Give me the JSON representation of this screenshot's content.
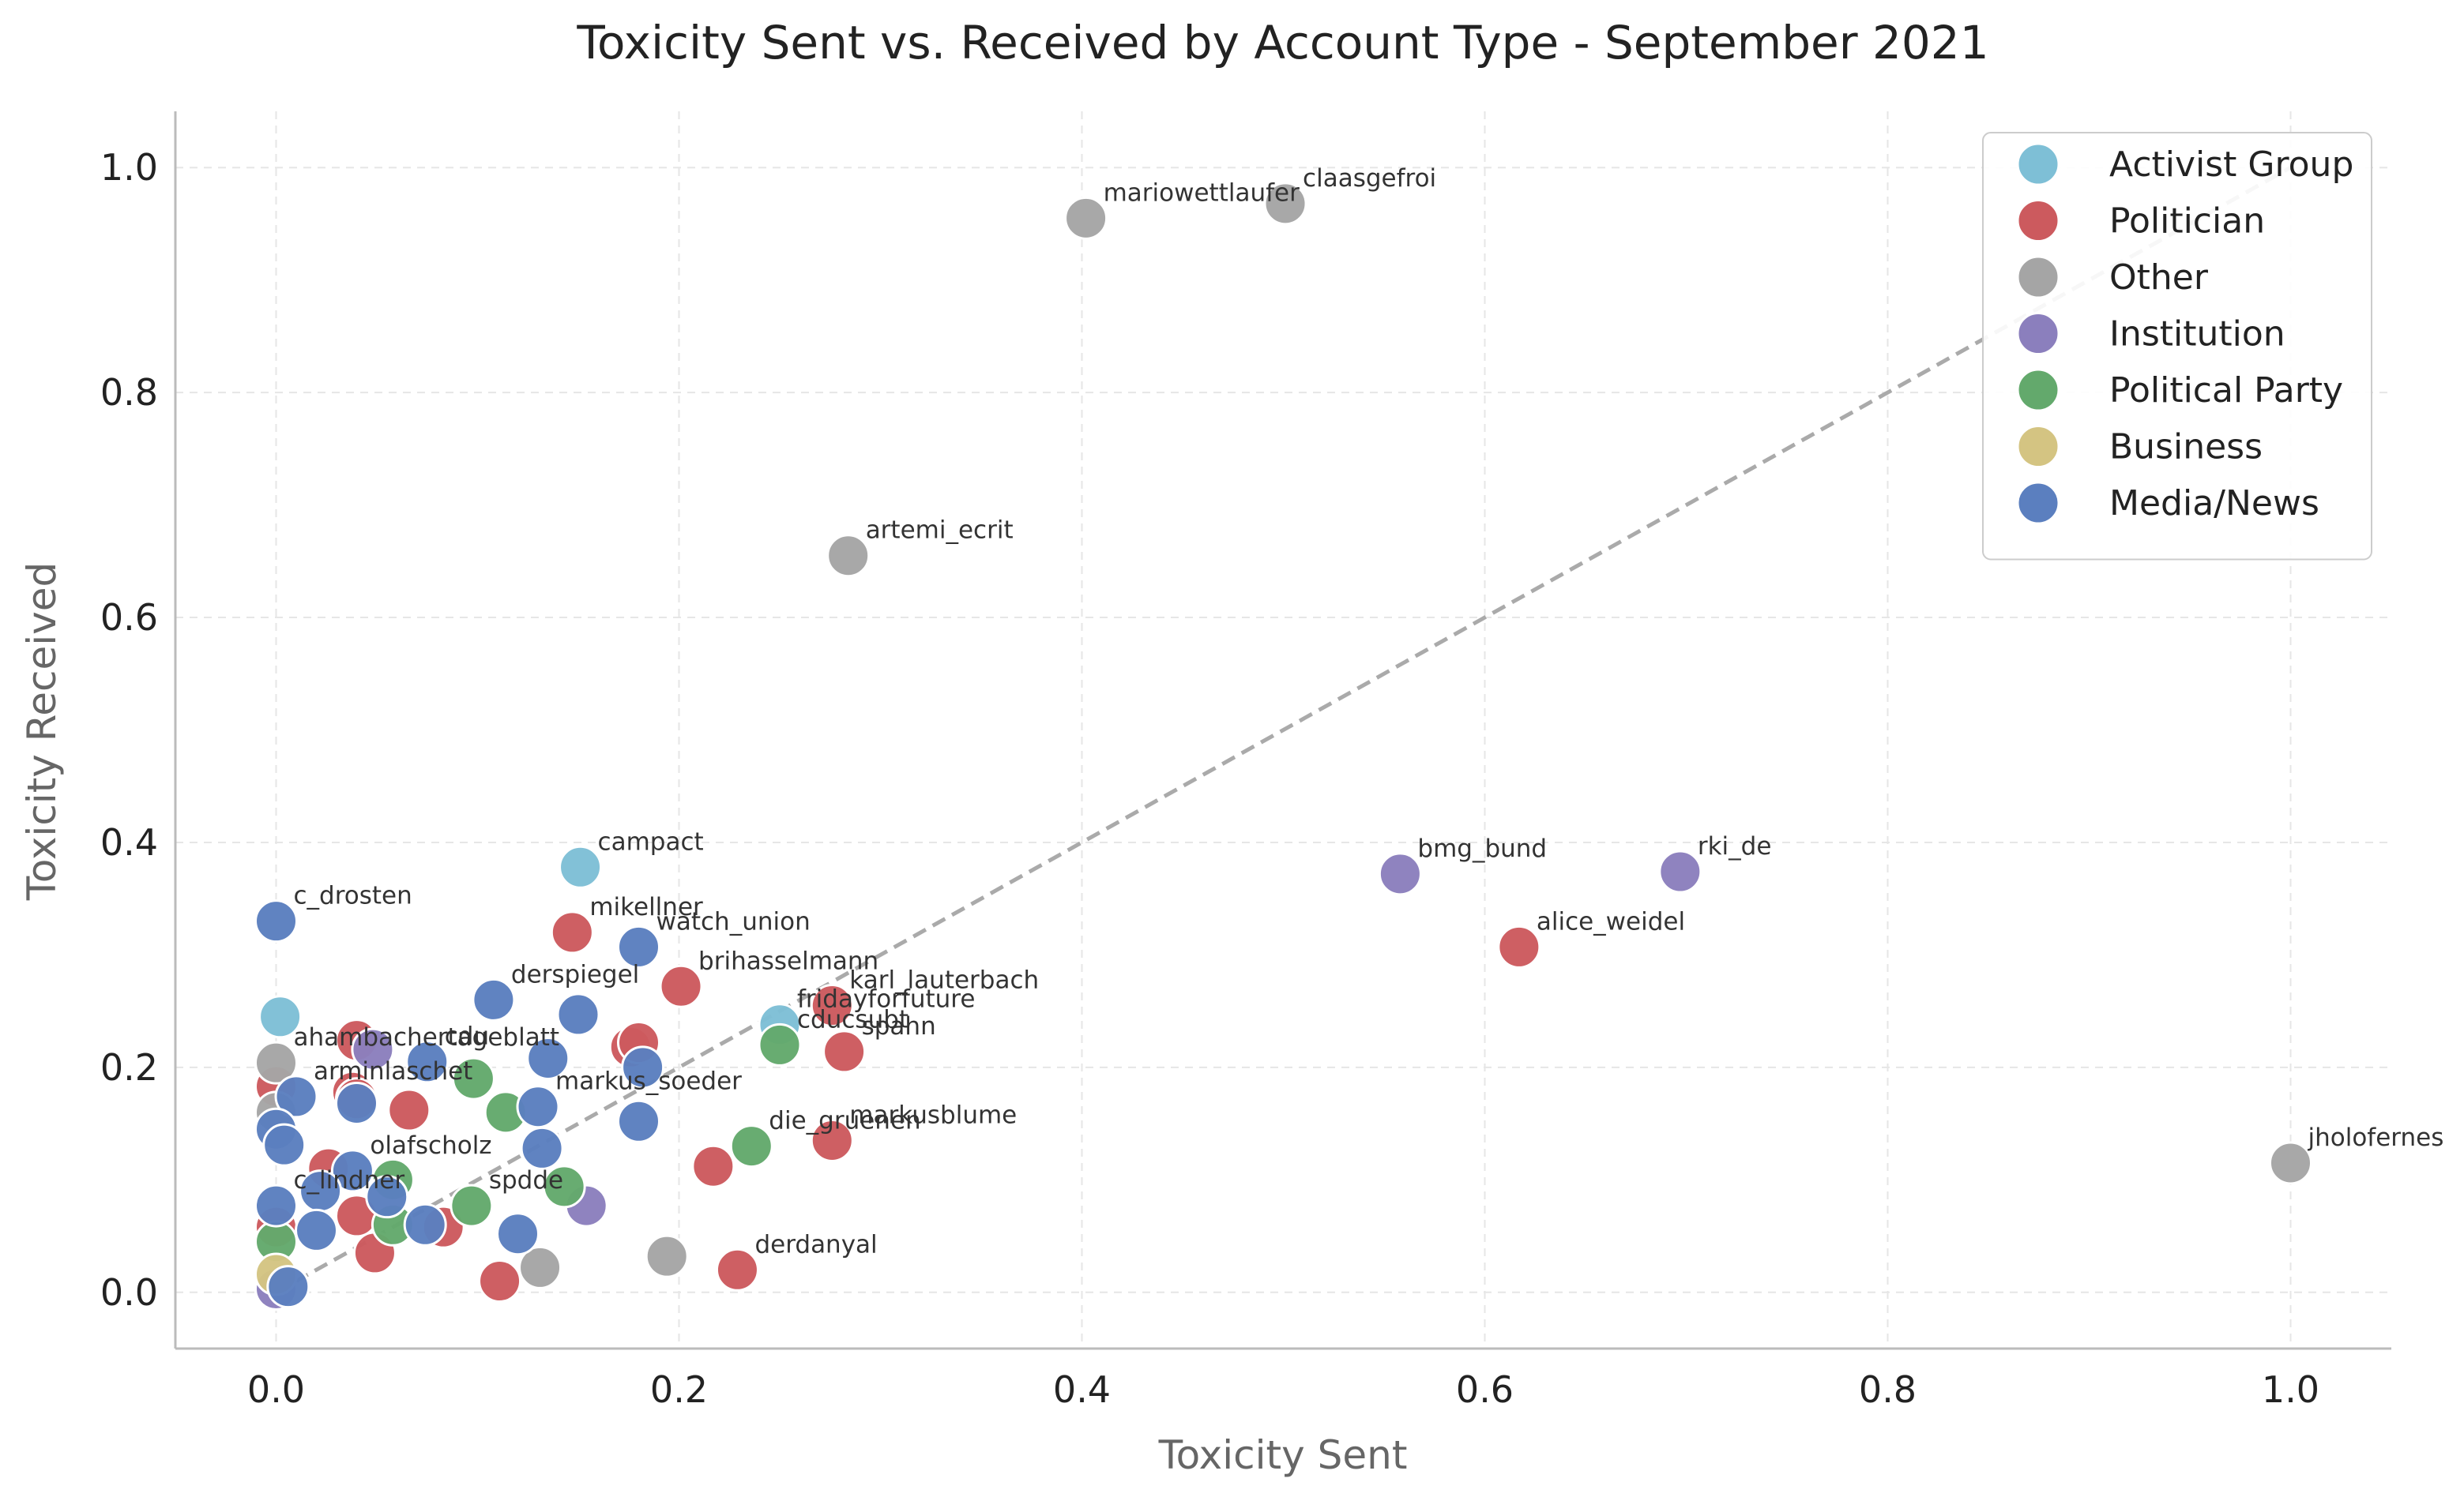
{
  "chart_data": {
    "type": "scatter",
    "title": "Toxicity Sent vs. Received by Account Type - September 2021",
    "xlabel": "Toxicity Sent",
    "ylabel": "Toxicity Received",
    "xlim": [
      -0.05,
      1.05
    ],
    "ylim": [
      -0.05,
      1.05
    ],
    "xticks": [
      "0.0",
      "0.2",
      "0.4",
      "0.6",
      "0.8",
      "1.0"
    ],
    "yticks": [
      "0.0",
      "0.2",
      "0.4",
      "0.6",
      "0.8",
      "1.0"
    ],
    "xtick_values": [
      0,
      0.2,
      0.4,
      0.6,
      0.8,
      1.0
    ],
    "ytick_values": [
      0,
      0.2,
      0.4,
      0.6,
      0.8,
      1.0
    ],
    "grid": true,
    "legend_position": "top-right",
    "reference_line": {
      "from": [
        0,
        0
      ],
      "to": [
        1,
        1
      ],
      "style": "dashed",
      "color": "#aaaaaa"
    },
    "series": [
      {
        "name": "Activist Group",
        "color": "#7ebfd6",
        "points": [
          {
            "x": 0.151,
            "y": 0.378,
            "label": "campact"
          },
          {
            "x": 0.002,
            "y": 0.245,
            "label": ""
          },
          {
            "x": 0.25,
            "y": 0.238,
            "label": "fridayforfuture"
          }
        ]
      },
      {
        "name": "Politician",
        "color": "#cc5a5e",
        "points": [
          {
            "x": 0.147,
            "y": 0.32,
            "label": "mikellner"
          },
          {
            "x": 0.201,
            "y": 0.272,
            "label": "brihasselmann"
          },
          {
            "x": 0.276,
            "y": 0.255,
            "label": "karl_lauterbach"
          },
          {
            "x": 0.282,
            "y": 0.214,
            "label": "spahn"
          },
          {
            "x": 0.617,
            "y": 0.307,
            "label": "alice_weidel"
          },
          {
            "x": 0.276,
            "y": 0.135,
            "label": "markusblume"
          },
          {
            "x": 0.217,
            "y": 0.112,
            "label": ""
          },
          {
            "x": 0.229,
            "y": 0.02,
            "label": "derdanyal"
          },
          {
            "x": 0.176,
            "y": 0.218,
            "label": ""
          },
          {
            "x": 0.18,
            "y": 0.222,
            "label": ""
          },
          {
            "x": 0.04,
            "y": 0.224,
            "label": ""
          },
          {
            "x": 0.066,
            "y": 0.162,
            "label": ""
          },
          {
            "x": 0.038,
            "y": 0.178,
            "label": ""
          },
          {
            "x": 0.04,
            "y": 0.172,
            "label": ""
          },
          {
            "x": 0.026,
            "y": 0.11,
            "label": ""
          },
          {
            "x": 0.049,
            "y": 0.035,
            "label": ""
          },
          {
            "x": 0.083,
            "y": 0.058,
            "label": ""
          },
          {
            "x": 0.111,
            "y": 0.01,
            "label": ""
          },
          {
            "x": 0.0,
            "y": 0.183,
            "label": ""
          },
          {
            "x": 0.0,
            "y": 0.058,
            "label": ""
          },
          {
            "x": 0.04,
            "y": 0.068,
            "label": ""
          }
        ]
      },
      {
        "name": "Other",
        "color": "#a5a5a5",
        "points": [
          {
            "x": 0.402,
            "y": 0.955,
            "label": "mariowettlaufer"
          },
          {
            "x": 0.501,
            "y": 0.968,
            "label": "claasgefroi"
          },
          {
            "x": 0.284,
            "y": 0.655,
            "label": "artemi_ecrit"
          },
          {
            "x": 1.0,
            "y": 0.115,
            "label": "jholofernes"
          },
          {
            "x": 0.194,
            "y": 0.032,
            "label": ""
          },
          {
            "x": 0.131,
            "y": 0.022,
            "label": ""
          },
          {
            "x": 0.0,
            "y": 0.204,
            "label": "ahambachertageblatt"
          },
          {
            "x": 0.0,
            "y": 0.16,
            "label": ""
          }
        ]
      },
      {
        "name": "Institution",
        "color": "#8b7fbd",
        "points": [
          {
            "x": 0.558,
            "y": 0.372,
            "label": "bmg_bund"
          },
          {
            "x": 0.697,
            "y": 0.374,
            "label": "rki_de"
          },
          {
            "x": 0.154,
            "y": 0.077,
            "label": ""
          },
          {
            "x": 0.048,
            "y": 0.216,
            "label": ""
          },
          {
            "x": 0.0,
            "y": 0.003,
            "label": ""
          }
        ]
      },
      {
        "name": "Political Party",
        "color": "#63a96c",
        "points": [
          {
            "x": 0.25,
            "y": 0.22,
            "label": "cducsubt"
          },
          {
            "x": 0.236,
            "y": 0.13,
            "label": "die_gruenen"
          },
          {
            "x": 0.114,
            "y": 0.16,
            "label": ""
          },
          {
            "x": 0.143,
            "y": 0.094,
            "label": ""
          },
          {
            "x": 0.097,
            "y": 0.077,
            "label": "spdde"
          },
          {
            "x": 0.098,
            "y": 0.19,
            "label": ""
          },
          {
            "x": 0.058,
            "y": 0.1,
            "label": ""
          },
          {
            "x": 0.058,
            "y": 0.06,
            "label": ""
          },
          {
            "x": 0.0,
            "y": 0.045,
            "label": ""
          }
        ]
      },
      {
        "name": "Business",
        "color": "#d4c482",
        "points": [
          {
            "x": 0.0,
            "y": 0.016,
            "label": ""
          }
        ]
      },
      {
        "name": "Media/News",
        "color": "#5b7fbf",
        "points": [
          {
            "x": 0.0,
            "y": 0.33,
            "label": "c_drosten"
          },
          {
            "x": 0.18,
            "y": 0.307,
            "label": "watch_union"
          },
          {
            "x": 0.108,
            "y": 0.26,
            "label": "derspiegel"
          },
          {
            "x": 0.15,
            "y": 0.247,
            "label": ""
          },
          {
            "x": 0.135,
            "y": 0.208,
            "label": ""
          },
          {
            "x": 0.182,
            "y": 0.2,
            "label": ""
          },
          {
            "x": 0.18,
            "y": 0.152,
            "label": ""
          },
          {
            "x": 0.13,
            "y": 0.165,
            "label": "markus_soeder"
          },
          {
            "x": 0.132,
            "y": 0.128,
            "label": ""
          },
          {
            "x": 0.075,
            "y": 0.205,
            "label": "cdu"
          },
          {
            "x": 0.01,
            "y": 0.174,
            "label": "arminlaschet"
          },
          {
            "x": 0.04,
            "y": 0.168,
            "label": ""
          },
          {
            "x": 0.0,
            "y": 0.145,
            "label": ""
          },
          {
            "x": 0.004,
            "y": 0.131,
            "label": ""
          },
          {
            "x": 0.038,
            "y": 0.108,
            "label": "olafscholz"
          },
          {
            "x": 0.022,
            "y": 0.09,
            "label": ""
          },
          {
            "x": 0.055,
            "y": 0.085,
            "label": ""
          },
          {
            "x": 0.0,
            "y": 0.077,
            "label": "c_lindner"
          },
          {
            "x": 0.02,
            "y": 0.055,
            "label": ""
          },
          {
            "x": 0.074,
            "y": 0.06,
            "label": ""
          },
          {
            "x": 0.12,
            "y": 0.052,
            "label": ""
          },
          {
            "x": 0.006,
            "y": 0.005,
            "label": ""
          }
        ]
      }
    ]
  }
}
